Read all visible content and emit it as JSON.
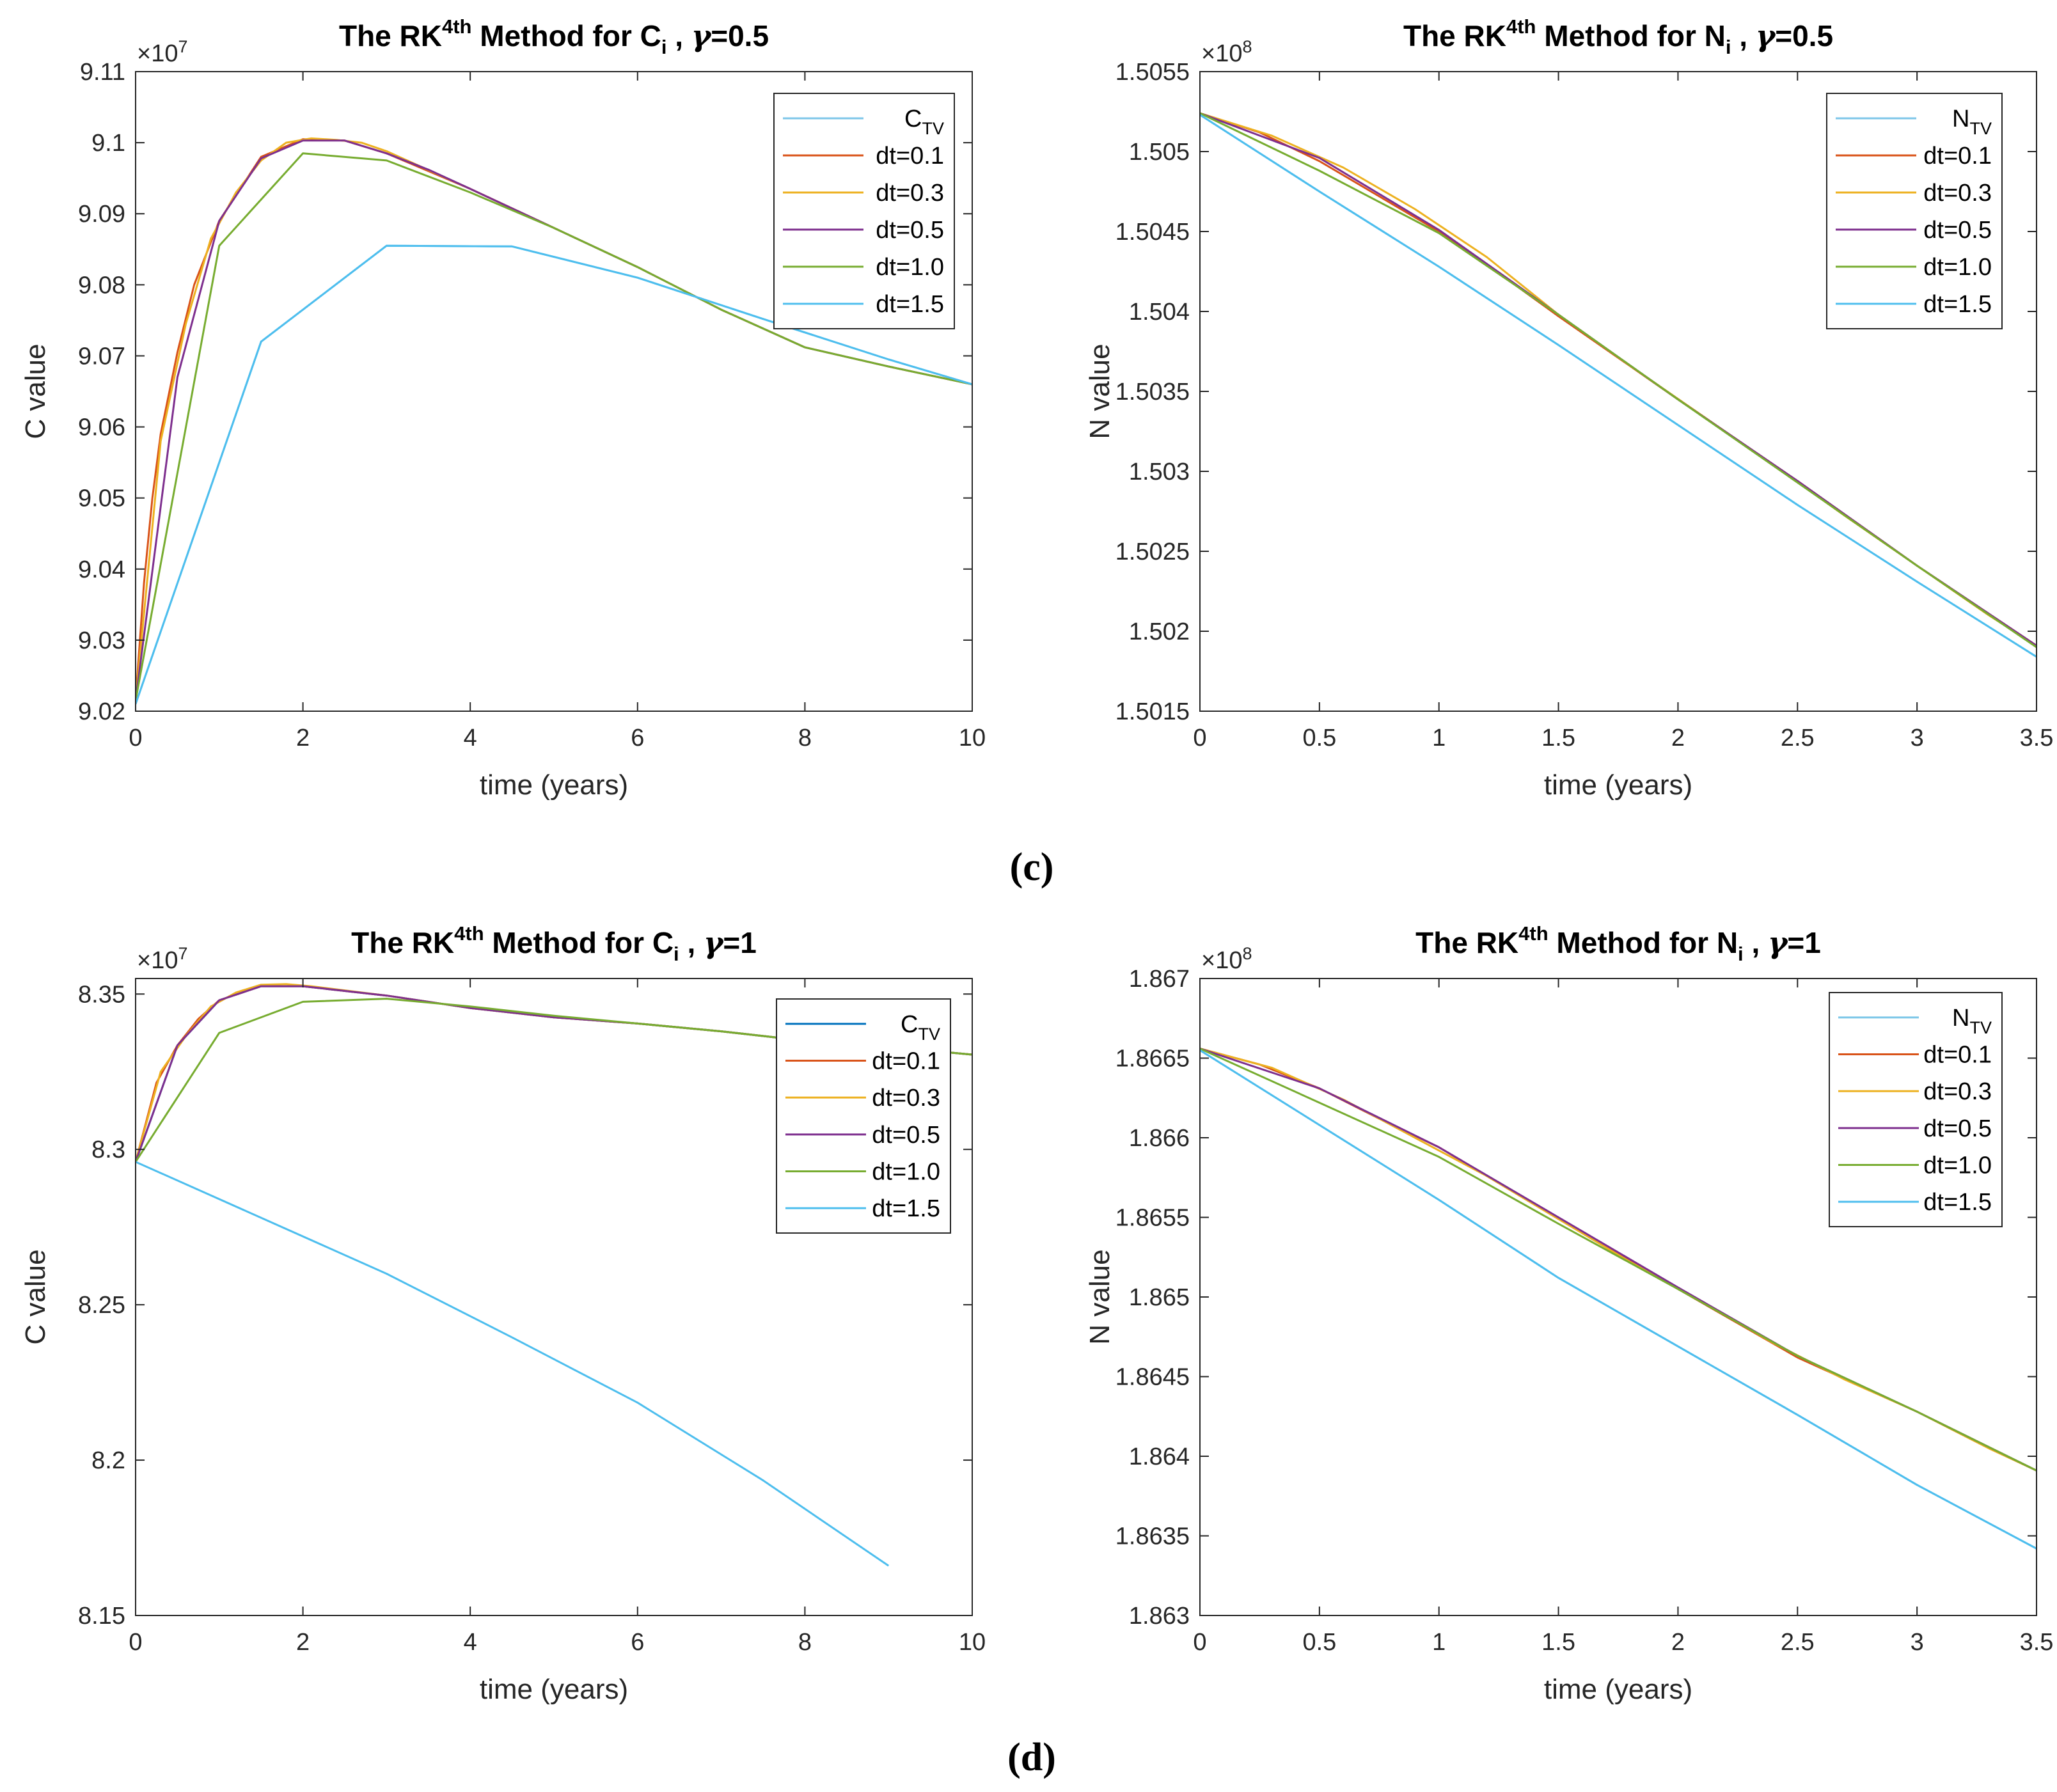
{
  "figure": {
    "panel_labels": [
      "(c)",
      "(d)"
    ]
  },
  "colors": {
    "tv": "#7DC6E8",
    "tv_d": "#0072BD",
    "dt01": "#D95319",
    "dt03": "#EDB120",
    "dt05": "#7E2F8E",
    "dt10": "#77AC30",
    "dt15": "#4DBEEE"
  },
  "chart_data": [
    {
      "type": "line",
      "title_parts": [
        "The RK",
        "4th",
        " Method for C",
        "i",
        " ,  ",
        "γ",
        "=0.5"
      ],
      "xlabel": "time (years)",
      "ylabel": "C value",
      "exponent_base": "×10",
      "exponent_power": "7",
      "xlim": [
        0,
        10
      ],
      "ylim": [
        9.02,
        9.11
      ],
      "xticks": [
        0,
        2,
        4,
        6,
        8,
        10
      ],
      "xtick_labels": [
        "0",
        "2",
        "4",
        "6",
        "8",
        "10"
      ],
      "yticks": [
        9.02,
        9.03,
        9.04,
        9.05,
        9.06,
        9.07,
        9.08,
        9.09,
        9.1,
        9.11
      ],
      "ytick_labels": [
        "9.02",
        "9.03",
        "9.04",
        "9.05",
        "9.06",
        "9.07",
        "9.08",
        "9.09",
        "9.1",
        "9.11"
      ],
      "legend_position": "top-right",
      "series": [
        {
          "name": "C",
          "sub": "TV",
          "color_key": "tv",
          "x": [
            0,
            1.5,
            3,
            4.5,
            6,
            7.5,
            9,
            10
          ],
          "y": [
            9.021,
            9.072,
            9.0855,
            9.0854,
            9.081,
            9.0752,
            9.0695,
            9.066
          ]
        },
        {
          "name": "dt=0.1",
          "color_key": "dt01",
          "x": [
            0,
            0.1,
            0.2,
            0.3,
            0.5,
            0.7,
            1,
            1.5,
            2,
            2.5,
            3,
            4,
            5,
            6,
            7,
            8,
            9,
            10
          ],
          "y": [
            9.0215,
            9.038,
            9.05,
            9.059,
            9.0705,
            9.08,
            9.089,
            9.098,
            9.1005,
            9.1003,
            9.0985,
            9.0935,
            9.088,
            9.0825,
            9.0765,
            9.0712,
            9.0685,
            9.066
          ]
        },
        {
          "name": "dt=0.3",
          "color_key": "dt03",
          "x": [
            0,
            0.3,
            0.6,
            0.9,
            1.2,
            1.5,
            1.8,
            2.1,
            2.4,
            2.7,
            3,
            4,
            5,
            6,
            7,
            8,
            9,
            10
          ],
          "y": [
            9.0215,
            9.058,
            9.0745,
            9.0865,
            9.093,
            9.0975,
            9.1,
            9.1006,
            9.1004,
            9.1,
            9.0988,
            9.0935,
            9.088,
            9.0825,
            9.0765,
            9.0712,
            9.0685,
            9.066
          ]
        },
        {
          "name": "dt=0.5",
          "color_key": "dt05",
          "x": [
            0,
            0.5,
            1,
            1.5,
            2,
            2.5,
            3,
            3.5,
            4,
            5,
            6,
            7,
            8,
            9,
            10
          ],
          "y": [
            9.0215,
            9.067,
            9.089,
            9.0978,
            9.1003,
            9.1003,
            9.0985,
            9.0962,
            9.0935,
            9.088,
            9.0825,
            9.0765,
            9.0712,
            9.0685,
            9.066
          ]
        },
        {
          "name": "dt=1.0",
          "color_key": "dt10",
          "x": [
            0,
            1,
            2,
            3,
            4,
            5,
            6,
            7,
            8,
            9,
            10
          ],
          "y": [
            9.0215,
            9.0855,
            9.0985,
            9.0975,
            9.093,
            9.088,
            9.0825,
            9.0765,
            9.0712,
            9.0685,
            9.066
          ]
        },
        {
          "name": "dt=1.5",
          "color_key": "dt15",
          "x": [
            0,
            1.5,
            3,
            4.5,
            6,
            7.5,
            9,
            10
          ],
          "y": [
            9.021,
            9.072,
            9.0855,
            9.0854,
            9.081,
            9.0752,
            9.0695,
            9.066
          ]
        }
      ]
    },
    {
      "type": "line",
      "title_parts": [
        "The RK",
        "4th",
        " Method for N",
        "i",
        " ,  ",
        "γ",
        "=0.5"
      ],
      "xlabel": "time (years)",
      "ylabel": "N value",
      "exponent_base": "×10",
      "exponent_power": "8",
      "xlim": [
        0,
        3.5
      ],
      "ylim": [
        1.5015,
        1.5055
      ],
      "xticks": [
        0,
        0.5,
        1,
        1.5,
        2,
        2.5,
        3,
        3.5
      ],
      "xtick_labels": [
        "0",
        "0.5",
        "1",
        "1.5",
        "2",
        "2.5",
        "3",
        "3.5"
      ],
      "yticks": [
        1.5015,
        1.502,
        1.5025,
        1.503,
        1.5035,
        1.504,
        1.5045,
        1.505,
        1.5055
      ],
      "ytick_labels": [
        "1.5015",
        "1.502",
        "1.5025",
        "1.503",
        "1.5035",
        "1.504",
        "1.5045",
        "1.505",
        "1.5055"
      ],
      "legend_position": "top-right",
      "series": [
        {
          "name": "N",
          "sub": "TV",
          "color_key": "tv",
          "x": [
            0,
            0.5,
            1,
            1.5,
            2,
            2.5,
            3,
            3.5
          ],
          "y": [
            1.50523,
            1.50475,
            1.50428,
            1.50379,
            1.50329,
            1.50279,
            1.50231,
            1.50184
          ]
        },
        {
          "name": "dt=0.1",
          "color_key": "dt01",
          "x": [
            0,
            0.25,
            0.5,
            0.75,
            1,
            1.25,
            1.5,
            2,
            2.5,
            3,
            3.5
          ],
          "y": [
            1.50524,
            1.50512,
            1.50494,
            1.50472,
            1.5045,
            1.50424,
            1.50397,
            1.50345,
            1.50294,
            1.50241,
            1.50191
          ]
        },
        {
          "name": "dt=0.3",
          "color_key": "dt03",
          "x": [
            0,
            0.3,
            0.6,
            0.9,
            1.2,
            1.5,
            1.8,
            2.1,
            2.4,
            2.7,
            3,
            3.3,
            3.5
          ],
          "y": [
            1.50524,
            1.5051,
            1.5049,
            1.50464,
            1.50434,
            1.50398,
            1.50366,
            1.50335,
            1.50304,
            1.50272,
            1.50241,
            1.5021,
            1.50191
          ]
        },
        {
          "name": "dt=0.5",
          "color_key": "dt05",
          "x": [
            0,
            0.5,
            1,
            1.5,
            2,
            2.5,
            3,
            3.5
          ],
          "y": [
            1.50524,
            1.50496,
            1.50451,
            1.50398,
            1.50345,
            1.50294,
            1.50241,
            1.50191
          ]
        },
        {
          "name": "dt=1.0",
          "color_key": "dt10",
          "x": [
            0,
            0.5,
            1,
            1.5,
            2,
            2.5,
            3,
            3.5
          ],
          "y": [
            1.50524,
            1.50488,
            1.50449,
            1.50398,
            1.50345,
            1.50293,
            1.50241,
            1.5019
          ]
        },
        {
          "name": "dt=1.5",
          "color_key": "dt15",
          "x": [
            0,
            0.5,
            1,
            1.5,
            2,
            2.5,
            3,
            3.5
          ],
          "y": [
            1.50523,
            1.50475,
            1.50428,
            1.50379,
            1.50329,
            1.50279,
            1.50231,
            1.50184
          ]
        }
      ]
    },
    {
      "type": "line",
      "title_parts": [
        "The RK",
        "4th",
        " Method for C",
        "i",
        " ,  ",
        "γ",
        "=1"
      ],
      "xlabel": "time (years)",
      "ylabel": "C value",
      "exponent_base": "×10",
      "exponent_power": "7",
      "xlim": [
        0,
        10
      ],
      "ylim": [
        8.15,
        8.355
      ],
      "xticks": [
        0,
        2,
        4,
        6,
        8,
        10
      ],
      "xtick_labels": [
        "0",
        "2",
        "4",
        "6",
        "8",
        "10"
      ],
      "yticks": [
        8.15,
        8.2,
        8.25,
        8.3,
        8.35
      ],
      "ytick_labels": [
        "8.15",
        "8.2",
        "8.25",
        "8.3",
        "8.35"
      ],
      "legend_position": "top-right",
      "series": [
        {
          "name": "C",
          "sub": "TV",
          "color_key": "tv_d",
          "x": [
            0,
            0.5,
            1,
            1.5,
            2,
            3,
            4,
            5,
            6,
            7,
            8,
            9,
            10
          ],
          "y": [
            8.296,
            8.3335,
            8.348,
            8.3525,
            8.3525,
            8.3495,
            8.3455,
            8.3425,
            8.3405,
            8.338,
            8.335,
            8.333,
            8.3305
          ]
        },
        {
          "name": "dt=0.1",
          "color_key": "dt01",
          "x": [
            0,
            0.25,
            0.5,
            0.75,
            1,
            1.5,
            2,
            3,
            4,
            5,
            6,
            7,
            8,
            9,
            10
          ],
          "y": [
            8.296,
            8.3215,
            8.3335,
            8.342,
            8.348,
            8.3525,
            8.3525,
            8.3495,
            8.3455,
            8.3425,
            8.3405,
            8.338,
            8.335,
            8.333,
            8.3305
          ]
        },
        {
          "name": "dt=0.3",
          "color_key": "dt03",
          "x": [
            0,
            0.3,
            0.6,
            0.9,
            1.2,
            1.5,
            1.8,
            2.1,
            3,
            4,
            5,
            6,
            7,
            8,
            9,
            10
          ],
          "y": [
            8.296,
            8.325,
            8.3365,
            8.346,
            8.3505,
            8.353,
            8.3532,
            8.3525,
            8.3495,
            8.3455,
            8.3425,
            8.3405,
            8.338,
            8.335,
            8.333,
            8.3305
          ]
        },
        {
          "name": "dt=0.5",
          "color_key": "dt05",
          "x": [
            0,
            0.5,
            1,
            1.5,
            2,
            3,
            4,
            5,
            6,
            7,
            8,
            9,
            10
          ],
          "y": [
            8.296,
            8.3335,
            8.348,
            8.3525,
            8.3525,
            8.3495,
            8.3455,
            8.3425,
            8.3405,
            8.338,
            8.335,
            8.333,
            8.3305
          ]
        },
        {
          "name": "dt=1.0",
          "color_key": "dt10",
          "x": [
            0,
            1,
            2,
            3,
            4,
            5,
            6,
            7,
            8,
            9,
            10
          ],
          "y": [
            8.296,
            8.3375,
            8.3475,
            8.3485,
            8.346,
            8.343,
            8.3405,
            8.338,
            8.335,
            8.333,
            8.3305
          ]
        },
        {
          "name": "dt=1.5",
          "color_key": "dt15",
          "x": [
            0,
            1.5,
            3,
            4.5,
            6,
            7.5,
            9
          ],
          "y": [
            8.296,
            8.278,
            8.26,
            8.2395,
            8.2185,
            8.1935,
            8.166
          ]
        }
      ]
    },
    {
      "type": "line",
      "title_parts": [
        "The RK",
        "4th",
        " Method for N",
        "i",
        " ,  ",
        "γ",
        "=1"
      ],
      "xlabel": "time (years)",
      "ylabel": "N value",
      "exponent_base": "×10",
      "exponent_power": "8",
      "xlim": [
        0,
        3.5
      ],
      "ylim": [
        1.863,
        1.867
      ],
      "xticks": [
        0,
        0.5,
        1,
        1.5,
        2,
        2.5,
        3,
        3.5
      ],
      "xtick_labels": [
        "0",
        "0.5",
        "1",
        "1.5",
        "2",
        "2.5",
        "3",
        "3.5"
      ],
      "yticks": [
        1.863,
        1.8635,
        1.864,
        1.8645,
        1.865,
        1.8655,
        1.866,
        1.8665,
        1.867
      ],
      "ytick_labels": [
        "1.863",
        "1.8635",
        "1.864",
        "1.8645",
        "1.865",
        "1.8655",
        "1.866",
        "1.8665",
        "1.867"
      ],
      "legend_position": "top-right",
      "series": [
        {
          "name": "N",
          "sub": "TV",
          "color_key": "tv",
          "x": [
            0,
            0.5,
            1,
            1.5,
            2,
            2.5,
            3,
            3.5
          ],
          "y": [
            1.86655,
            1.86608,
            1.86561,
            1.86512,
            1.86469,
            1.86426,
            1.86382,
            1.86342
          ]
        },
        {
          "name": "dt=0.1",
          "color_key": "dt01",
          "x": [
            0,
            0.25,
            0.5,
            0.75,
            1,
            1.5,
            2,
            2.5,
            3,
            3.5
          ],
          "y": [
            1.86656,
            1.86646,
            1.86631,
            1.86612,
            1.86594,
            1.86549,
            1.86505,
            1.86462,
            1.86428,
            1.86391
          ]
        },
        {
          "name": "dt=0.3",
          "color_key": "dt03",
          "x": [
            0,
            0.3,
            0.6,
            0.9,
            1.2,
            1.5,
            1.8,
            2.1,
            2.4,
            2.7,
            3,
            3.3,
            3.5
          ],
          "y": [
            1.86656,
            1.86644,
            1.86624,
            1.866,
            1.86576,
            1.86549,
            1.86522,
            1.86497,
            1.86471,
            1.86448,
            1.86428,
            1.86405,
            1.86391
          ]
        },
        {
          "name": "dt=0.5",
          "color_key": "dt05",
          "x": [
            0,
            0.5,
            1,
            1.5,
            2,
            2.5,
            3,
            3.5
          ],
          "y": [
            1.86656,
            1.86631,
            1.86594,
            1.8655,
            1.86506,
            1.86463,
            1.86428,
            1.86391
          ]
        },
        {
          "name": "dt=1.0",
          "color_key": "dt10",
          "x": [
            0,
            0.5,
            1,
            1.5,
            2,
            2.5,
            3,
            3.5
          ],
          "y": [
            1.86656,
            1.86622,
            1.86588,
            1.86546,
            1.86505,
            1.86463,
            1.86428,
            1.86391
          ]
        },
        {
          "name": "dt=1.5",
          "color_key": "dt15",
          "x": [
            0,
            0.5,
            1,
            1.5,
            2,
            2.5,
            3,
            3.5
          ],
          "y": [
            1.86655,
            1.86608,
            1.86561,
            1.86512,
            1.86469,
            1.86426,
            1.86382,
            1.86342
          ]
        }
      ]
    }
  ]
}
